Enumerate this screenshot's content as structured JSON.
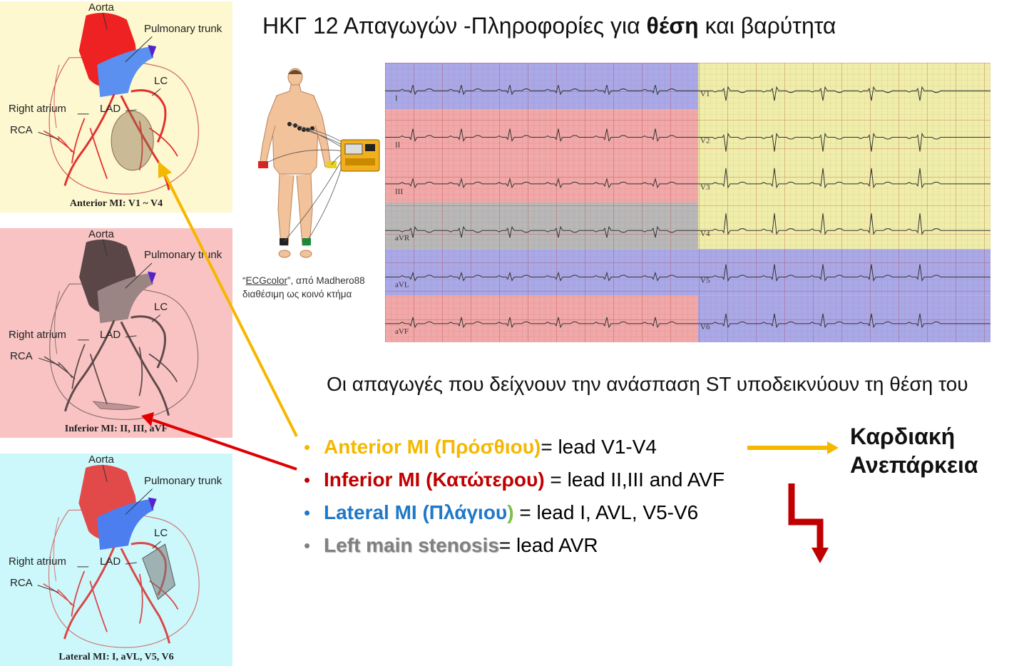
{
  "title": {
    "prefix": "ΗΚΓ 12 Απαγωγών -Πληροφορίες για ",
    "bold": "θέση",
    "suffix": " και βαρύτητα"
  },
  "panels": [
    {
      "bg": "#fdf8cf",
      "aorta": "Aorta",
      "pulmonary": "Pulmonary trunk",
      "lc": "LC",
      "ra": "Right atrium",
      "lad": "LAD",
      "rca": "RCA",
      "caption": "Anterior MI: V1 ~ V4"
    },
    {
      "bg": "#f9c3c3",
      "aorta": "Aorta",
      "pulmonary": "Pulmonary trunk",
      "lc": "LC",
      "ra": "Right atrium",
      "lad": "LAD",
      "rca": "RCA",
      "caption": "Inferior MI: II, III, aVF"
    },
    {
      "bg": "#cdf8fb",
      "aorta": "Aorta",
      "pulmonary": "Pulmonary trunk",
      "lc": "LC",
      "ra": "Right atrium",
      "lad": "LAD",
      "rca": "RCA",
      "caption": "Lateral MI: I, aVL, V5, V6"
    }
  ],
  "caption": {
    "quote_open": "“",
    "link": "ECGcolor",
    "rest": "”, από Madhero88",
    "line2": "διαθέσιμη ως κοινό κτήμα"
  },
  "ecg_leads": {
    "left": [
      "I",
      "II",
      "III",
      "aVR",
      "aVL",
      "aVF"
    ],
    "right": [
      "V1",
      "V2",
      "V3",
      "V4",
      "V5",
      "V6"
    ]
  },
  "body_text": "Οι απαγωγές που δείχνουν  την ανάσπαση ST υποδεικνύουν τη θέση του",
  "mi_list": [
    {
      "bullet": "•",
      "label": "Anterior MI (Πρόσθιου)",
      "rest": "= lead V1-V4",
      "color": "#f5b800"
    },
    {
      "bullet": "•",
      "label": "Inferior MI (Κατώτερου)",
      "rest": " = lead II,III and AVF",
      "color": "#c00000"
    },
    {
      "bullet": "•",
      "label": "Lateral MI (Πλάγιου",
      "label_paren": ")",
      "rest": " = lead I, AVL, V5-V6",
      "color": "#1f78c8",
      "paren_color": "#7ac143"
    },
    {
      "bullet": "•",
      "label": "Left main stenosis",
      "rest": "= lead AVR",
      "color": "#808080"
    }
  ],
  "heart_failure": {
    "line1": "Καρδιακή",
    "line2": "Ανεπάρκεια"
  },
  "colors": {
    "anterior": "#f5b800",
    "inferior": "#c00000",
    "lateral": "#1f78c8",
    "left_main": "#808080",
    "arrow_yellow": "#f5b800",
    "arrow_red": "#e00000",
    "arrow_dark_red": "#c00000"
  }
}
